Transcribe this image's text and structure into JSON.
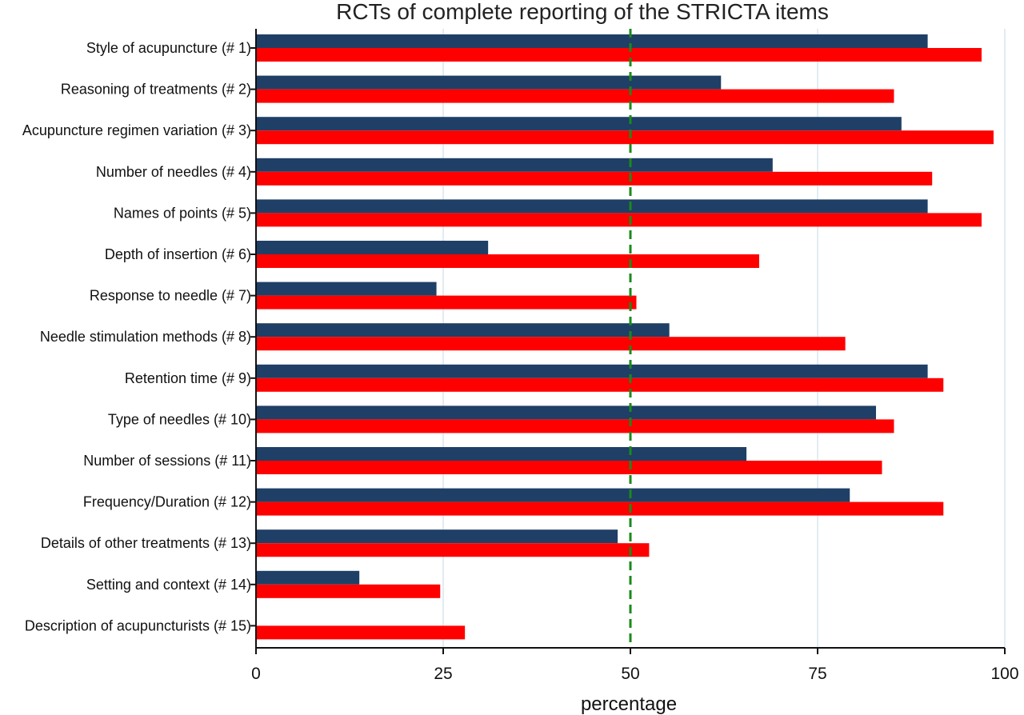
{
  "chart_data": {
    "type": "bar",
    "orientation": "horizontal",
    "title": "RCTs of complete reporting of the STRICTA items",
    "xlabel": "percentage",
    "ylabel": "",
    "xlim": [
      0,
      100
    ],
    "xticks": [
      0,
      25,
      50,
      75,
      100
    ],
    "reference_line": 50,
    "grid": "vertical",
    "categories": [
      "Style of acupuncture (# 1)",
      "Reasoning of treatments (# 2)",
      "Acupuncture regimen variation (# 3)",
      "Number of needles (# 4)",
      "Names of points (# 5)",
      "Depth of insertion (# 6)",
      "Response to needle (# 7)",
      "Needle stimulation methods (# 8)",
      "Retention time (# 9)",
      "Type of needles (# 10)",
      "Number of sessions (# 11)",
      "Frequency/Duration (# 12)",
      "Details of other treatments (# 13)",
      "Setting and context (# 14)",
      "Description of acupuncturists (# 15)"
    ],
    "series": [
      {
        "color": "#1f3f66",
        "values": [
          89.7,
          62.1,
          86.2,
          69.0,
          89.7,
          31.0,
          24.1,
          55.2,
          89.7,
          82.8,
          65.5,
          79.3,
          48.3,
          13.8,
          0
        ]
      },
      {
        "color": "#ff0000",
        "values": [
          96.9,
          85.2,
          98.5,
          90.3,
          96.9,
          67.2,
          50.8,
          78.7,
          91.8,
          85.2,
          83.6,
          91.8,
          52.5,
          24.6,
          27.9
        ]
      }
    ]
  }
}
